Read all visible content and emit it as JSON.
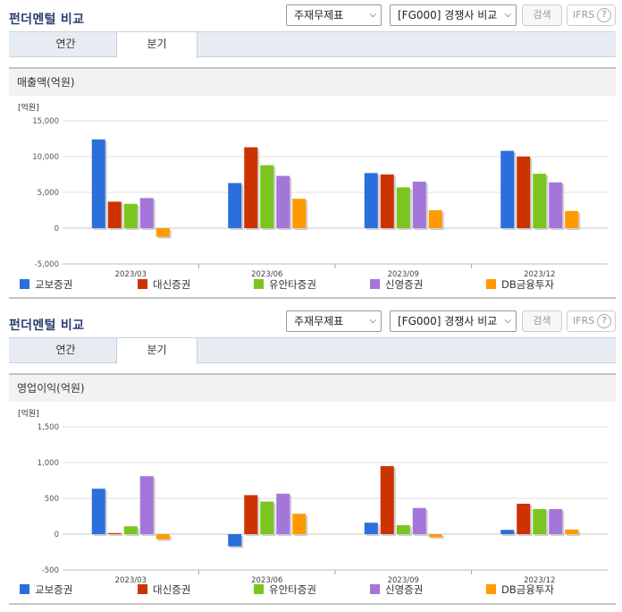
{
  "sections": [
    {
      "header": {
        "title": "펀더멘털 비교",
        "statement_select": "주재무제표",
        "compare_select": "[FG000] 경쟁사 비교",
        "search_label": "검색",
        "ifrs_label": "IFRS",
        "help_symbol": "?"
      },
      "tabs": [
        {
          "label": "연간",
          "active": false
        },
        {
          "label": "분기",
          "active": true
        }
      ],
      "chart_title": "매출액(억원)",
      "chart_data": {
        "type": "bar",
        "unit_label": "[억원]",
        "categories": [
          "2023/03",
          "2023/06",
          "2023/09",
          "2023/12"
        ],
        "ylim": [
          -5000,
          15000
        ],
        "yticks": [
          15000,
          10000,
          5000,
          0,
          -5000
        ],
        "ytick_labels": [
          "15,000",
          "10,000",
          "5,000",
          "0",
          "-5,000"
        ],
        "grid": true,
        "legend": "bottom",
        "series": [
          {
            "name": "교보증권",
            "color": "#2b6fdc",
            "values": [
              12400,
              6300,
              7700,
              10800
            ]
          },
          {
            "name": "대신증권",
            "color": "#cc3300",
            "values": [
              3700,
              11300,
              7500,
              10000
            ]
          },
          {
            "name": "유안타증권",
            "color": "#7cc520",
            "values": [
              3400,
              8800,
              5700,
              7600
            ]
          },
          {
            "name": "신영증권",
            "color": "#a476da",
            "values": [
              4200,
              7300,
              6500,
              6400
            ]
          },
          {
            "name": "DB금융투자",
            "color": "#ff9a00",
            "values": [
              -1200,
              4100,
              2500,
              2400
            ]
          }
        ]
      }
    },
    {
      "header": {
        "title": "펀더멘털 비교",
        "statement_select": "주재무제표",
        "compare_select": "[FG000] 경쟁사 비교",
        "search_label": "검색",
        "ifrs_label": "IFRS",
        "help_symbol": "?"
      },
      "tabs": [
        {
          "label": "연간",
          "active": false
        },
        {
          "label": "분기",
          "active": true
        }
      ],
      "chart_title": "영업이익(억원)",
      "chart_data": {
        "type": "bar",
        "unit_label": "[억원]",
        "categories": [
          "2023/03",
          "2023/06",
          "2023/09",
          "2023/12"
        ],
        "ylim": [
          -500,
          1500
        ],
        "yticks": [
          1500,
          1000,
          500,
          0,
          -500
        ],
        "ytick_labels": [
          "1,500",
          "1,000",
          "500",
          "0",
          "-500"
        ],
        "grid": true,
        "legend": "bottom",
        "series": [
          {
            "name": "교보증권",
            "color": "#2b6fdc",
            "values": [
              635,
              -170,
              160,
              60
            ]
          },
          {
            "name": "대신증권",
            "color": "#cc3300",
            "values": [
              15,
              545,
              950,
              425
            ]
          },
          {
            "name": "유안타증권",
            "color": "#7cc520",
            "values": [
              110,
              455,
              125,
              350
            ]
          },
          {
            "name": "신영증권",
            "color": "#a476da",
            "values": [
              810,
              565,
              365,
              350
            ]
          },
          {
            "name": "DB금융투자",
            "color": "#ff9a00",
            "values": [
              -70,
              285,
              -40,
              65
            ]
          }
        ]
      }
    }
  ]
}
